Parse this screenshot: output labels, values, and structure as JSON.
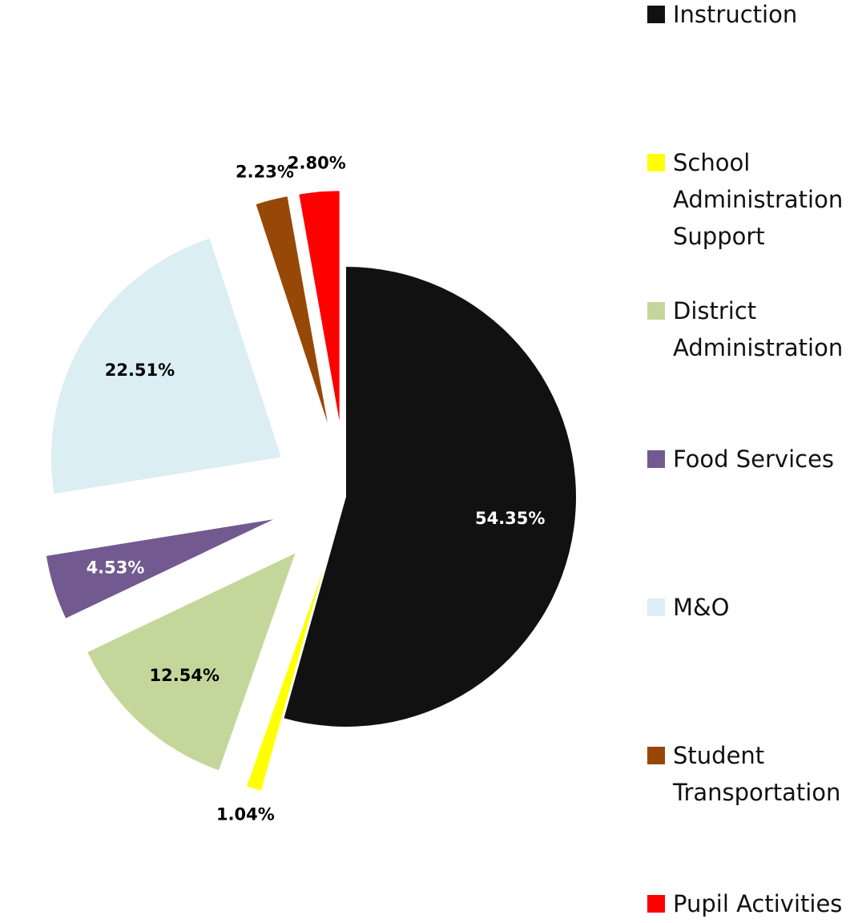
{
  "chart_data": {
    "type": "pie",
    "categories": [
      "Instruction",
      "School Administration Support",
      "District Administration",
      "Food Services",
      "M&O",
      "Student Transportation",
      "Pupil Activities"
    ],
    "values": [
      54.35,
      1.04,
      12.54,
      4.53,
      22.51,
      2.23,
      2.8
    ],
    "value_labels": [
      "54.35%",
      "1.04%",
      "12.54%",
      "4.53%",
      "22.51%",
      "2.23%",
      "2.80%"
    ],
    "colors": [
      "#111111",
      "#ffff00",
      "#c4d79b",
      "#72598f",
      "#daeef3",
      "#974706",
      "#ff0000"
    ],
    "legend": "right"
  }
}
